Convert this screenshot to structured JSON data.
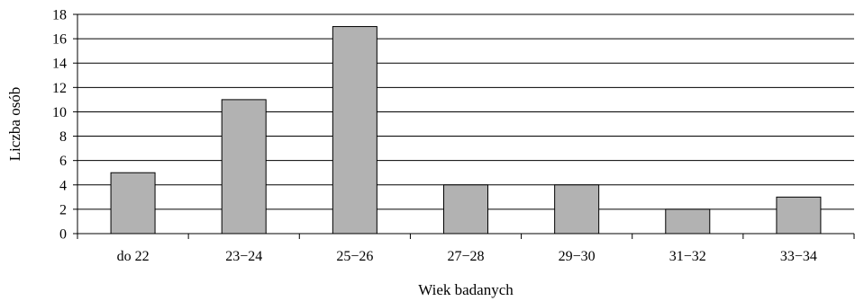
{
  "chart_data": {
    "type": "bar",
    "categories": [
      "do 22",
      "23−24",
      "25−26",
      "27−28",
      "29−30",
      "31−32",
      "33−34"
    ],
    "values": [
      5,
      11,
      17,
      4,
      4,
      2,
      3
    ],
    "xlabel": "Wiek badanych",
    "ylabel": "Liczba osób",
    "ylim": [
      0,
      18
    ],
    "yticks": [
      0,
      2,
      4,
      6,
      8,
      10,
      12,
      14,
      16,
      18
    ],
    "grid": true,
    "legend": "none",
    "colors": {
      "bar_fill": "#b2b2b2",
      "bar_stroke": "#000000",
      "grid": "#000000",
      "axis": "#000000"
    }
  }
}
